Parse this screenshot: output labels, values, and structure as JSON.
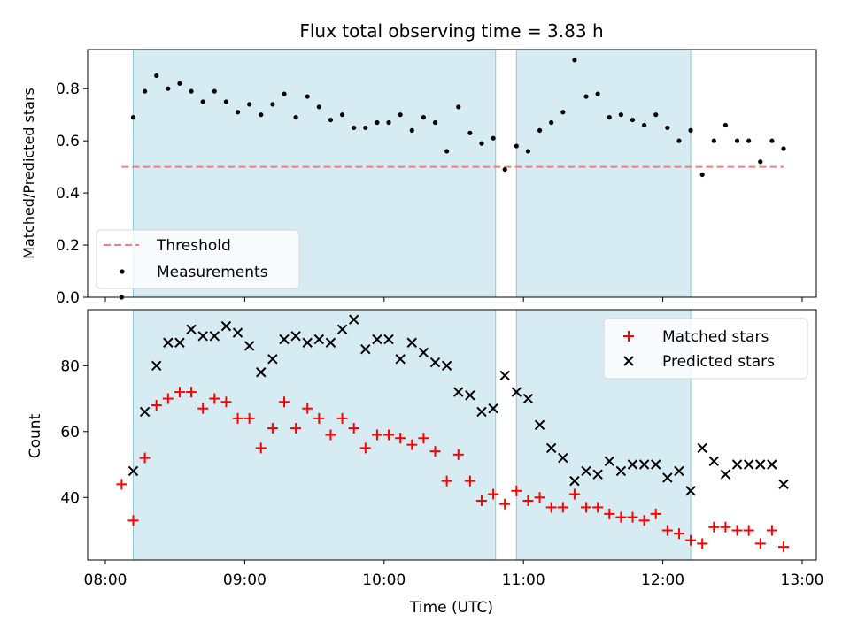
{
  "chart_data": [
    {
      "type": "scatter",
      "title": "Flux total observing time = 3.83 h",
      "ylabel": "Matched/Predicted stars",
      "xlabel": "",
      "xlim": [
        "08:00",
        "13:00"
      ],
      "ylim": [
        0,
        0.95
      ],
      "xticks": [
        "08:00",
        "09:00",
        "10:00",
        "11:00",
        "12:00",
        "13:00"
      ],
      "yticks": [
        "0.0",
        "0.2",
        "0.4",
        "0.6",
        "0.8"
      ],
      "grid": false,
      "legend": "bottom-left",
      "shaded_intervals": [
        [
          "08:12",
          "10:48"
        ],
        [
          "10:57",
          "12:12"
        ]
      ],
      "threshold": {
        "name": "Threshold",
        "value": 0.5,
        "x_range": [
          "08:07",
          "12:52"
        ],
        "color": "#f08080"
      },
      "series": [
        {
          "name": "Measurements",
          "color": "#000000",
          "x": [
            "08:07",
            "08:12",
            "08:17",
            "08:22",
            "08:27",
            "08:32",
            "08:37",
            "08:42",
            "08:47",
            "08:52",
            "08:57",
            "09:02",
            "09:07",
            "09:12",
            "09:17",
            "09:22",
            "09:27",
            "09:32",
            "09:37",
            "09:42",
            "09:47",
            "09:52",
            "09:57",
            "10:02",
            "10:07",
            "10:12",
            "10:17",
            "10:22",
            "10:27",
            "10:32",
            "10:37",
            "10:42",
            "10:47",
            "10:52",
            "10:57",
            "11:02",
            "11:07",
            "11:12",
            "11:17",
            "11:22",
            "11:27",
            "11:32",
            "11:37",
            "11:42",
            "11:47",
            "11:52",
            "11:57",
            "12:02",
            "12:07",
            "12:12",
            "12:17",
            "12:22",
            "12:27",
            "12:32",
            "12:37",
            "12:42",
            "12:47",
            "12:52"
          ],
          "y": [
            0.0,
            0.69,
            0.79,
            0.85,
            0.8,
            0.82,
            0.79,
            0.75,
            0.79,
            0.75,
            0.71,
            0.74,
            0.7,
            0.74,
            0.78,
            0.69,
            0.77,
            0.73,
            0.68,
            0.7,
            0.65,
            0.65,
            0.67,
            0.67,
            0.7,
            0.64,
            0.69,
            0.67,
            0.56,
            0.73,
            0.63,
            0.59,
            0.61,
            0.49,
            0.58,
            0.56,
            0.64,
            0.67,
            0.71,
            0.91,
            0.77,
            0.78,
            0.69,
            0.7,
            0.68,
            0.66,
            0.7,
            0.65,
            0.6,
            0.64,
            0.47,
            0.6,
            0.66,
            0.6,
            0.6,
            0.52,
            0.6,
            0.57
          ]
        }
      ]
    },
    {
      "type": "scatter",
      "title": "",
      "ylabel": "Count",
      "xlabel": "Time (UTC)",
      "xlim": [
        "08:00",
        "13:00"
      ],
      "ylim": [
        21,
        97
      ],
      "xticks": [
        "08:00",
        "09:00",
        "10:00",
        "11:00",
        "12:00",
        "13:00"
      ],
      "yticks": [
        "40",
        "60",
        "80"
      ],
      "grid": false,
      "legend": "top-right",
      "shaded_intervals": [
        [
          "08:12",
          "10:48"
        ],
        [
          "10:57",
          "12:12"
        ]
      ],
      "series": [
        {
          "name": "Matched stars",
          "color": "#ff0000",
          "marker": "plus",
          "x": [
            "08:07",
            "08:12",
            "08:17",
            "08:22",
            "08:27",
            "08:32",
            "08:37",
            "08:42",
            "08:47",
            "08:52",
            "08:57",
            "09:02",
            "09:07",
            "09:12",
            "09:17",
            "09:22",
            "09:27",
            "09:32",
            "09:37",
            "09:42",
            "09:47",
            "09:52",
            "09:57",
            "10:02",
            "10:07",
            "10:12",
            "10:17",
            "10:22",
            "10:27",
            "10:32",
            "10:37",
            "10:42",
            "10:47",
            "10:52",
            "10:57",
            "11:02",
            "11:07",
            "11:12",
            "11:17",
            "11:22",
            "11:27",
            "11:32",
            "11:37",
            "11:42",
            "11:47",
            "11:52",
            "11:57",
            "12:02",
            "12:07",
            "12:12",
            "12:17",
            "12:22",
            "12:27",
            "12:32",
            "12:37",
            "12:42",
            "12:47",
            "12:52"
          ],
          "y": [
            44,
            33,
            52,
            68,
            70,
            72,
            72,
            67,
            70,
            69,
            64,
            64,
            55,
            61,
            69,
            61,
            67,
            64,
            59,
            64,
            61,
            55,
            59,
            59,
            58,
            56,
            58,
            54,
            45,
            53,
            45,
            39,
            41,
            38,
            42,
            39,
            40,
            37,
            37,
            41,
            37,
            37,
            35,
            34,
            34,
            33,
            35,
            30,
            29,
            27,
            26,
            31,
            31,
            30,
            30,
            26,
            30,
            25
          ]
        },
        {
          "name": "Predicted stars",
          "color": "#000000",
          "marker": "x",
          "x": [
            "08:12",
            "08:17",
            "08:22",
            "08:27",
            "08:32",
            "08:37",
            "08:42",
            "08:47",
            "08:52",
            "08:57",
            "09:02",
            "09:07",
            "09:12",
            "09:17",
            "09:22",
            "09:27",
            "09:32",
            "09:37",
            "09:42",
            "09:47",
            "09:52",
            "09:57",
            "10:02",
            "10:07",
            "10:12",
            "10:17",
            "10:22",
            "10:27",
            "10:32",
            "10:37",
            "10:42",
            "10:47",
            "10:52",
            "10:57",
            "11:02",
            "11:07",
            "11:12",
            "11:17",
            "11:22",
            "11:27",
            "11:32",
            "11:37",
            "11:42",
            "11:47",
            "11:52",
            "11:57",
            "12:02",
            "12:07",
            "12:12",
            "12:17",
            "12:22",
            "12:27",
            "12:32",
            "12:37",
            "12:42",
            "12:47",
            "12:52"
          ],
          "y": [
            48,
            66,
            80,
            87,
            87,
            91,
            89,
            89,
            92,
            90,
            86,
            78,
            82,
            88,
            89,
            87,
            88,
            87,
            91,
            94,
            85,
            88,
            88,
            82,
            87,
            84,
            81,
            80,
            72,
            71,
            66,
            67,
            77,
            72,
            70,
            62,
            55,
            52,
            45,
            48,
            47,
            51,
            48,
            50,
            50,
            50,
            46,
            48,
            42,
            55,
            51,
            47,
            50,
            50,
            50,
            50,
            44
          ]
        }
      ]
    }
  ]
}
